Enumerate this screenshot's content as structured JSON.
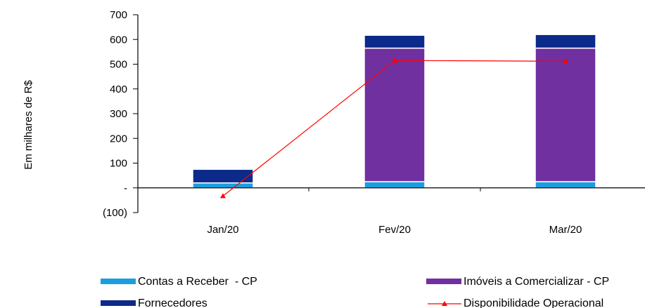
{
  "chart_data": {
    "type": "bar",
    "stacked": true,
    "ylabel": "Em milhares de R$",
    "ylim": [
      -100,
      700
    ],
    "yticks": [
      {
        "value": 700,
        "label": "700"
      },
      {
        "value": 600,
        "label": "600"
      },
      {
        "value": 500,
        "label": "500"
      },
      {
        "value": 400,
        "label": "400"
      },
      {
        "value": 300,
        "label": "300"
      },
      {
        "value": 200,
        "label": "200"
      },
      {
        "value": 100,
        "label": "100"
      },
      {
        "value": 0,
        "label": "-"
      },
      {
        "value": -100,
        "label": "(100)"
      }
    ],
    "categories": [
      "Jan/20",
      "Fev/20",
      "Mar/20"
    ],
    "series": [
      {
        "name": "Contas a Receber  - CP",
        "kind": "bar",
        "color": "#1a9ee0",
        "values": [
          20,
          25,
          25
        ]
      },
      {
        "name": "Imóveis a Comercializar - CP",
        "kind": "bar",
        "color": "#7030a0",
        "values": [
          0,
          540,
          540
        ]
      },
      {
        "name": "Fornecedores",
        "kind": "bar",
        "color": "#0b2a8a",
        "values": [
          55,
          52,
          55
        ]
      },
      {
        "name": "Disponibilidade Operacional",
        "kind": "line",
        "color": "#ff0000",
        "values": [
          -33,
          515,
          512
        ]
      }
    ],
    "legend": "bottom",
    "grid": false
  }
}
